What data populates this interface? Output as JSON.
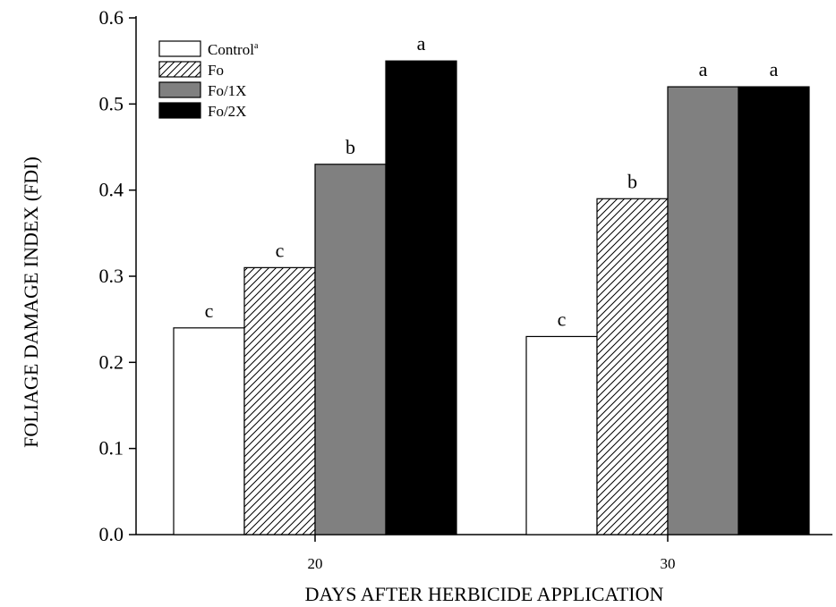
{
  "chart_data": {
    "type": "bar",
    "xlabel": "DAYS AFTER HERBICIDE APPLICATION",
    "ylabel": "FOLIAGE DAMAGE INDEX (FDI)",
    "ylim": [
      0,
      0.6
    ],
    "yticks": [
      "0.0",
      "0.1",
      "0.2",
      "0.3",
      "0.4",
      "0.5",
      "0.6"
    ],
    "categories": [
      "20",
      "30"
    ],
    "grid": false,
    "legend_position": "top-left",
    "series": [
      {
        "name": "Control",
        "name_sup": "a",
        "fill": "white",
        "values": [
          0.24,
          0.23
        ],
        "letters": [
          "c",
          "c"
        ]
      },
      {
        "name": "Fo",
        "fill": "hatch",
        "values": [
          0.31,
          0.39
        ],
        "letters": [
          "c",
          "b"
        ]
      },
      {
        "name": "Fo/1X",
        "fill": "#808080",
        "values": [
          0.43,
          0.52
        ],
        "letters": [
          "b",
          "a"
        ]
      },
      {
        "name": "Fo/2X",
        "fill": "#000000",
        "values": [
          0.55,
          0.52
        ],
        "letters": [
          "a",
          "a"
        ]
      }
    ]
  }
}
